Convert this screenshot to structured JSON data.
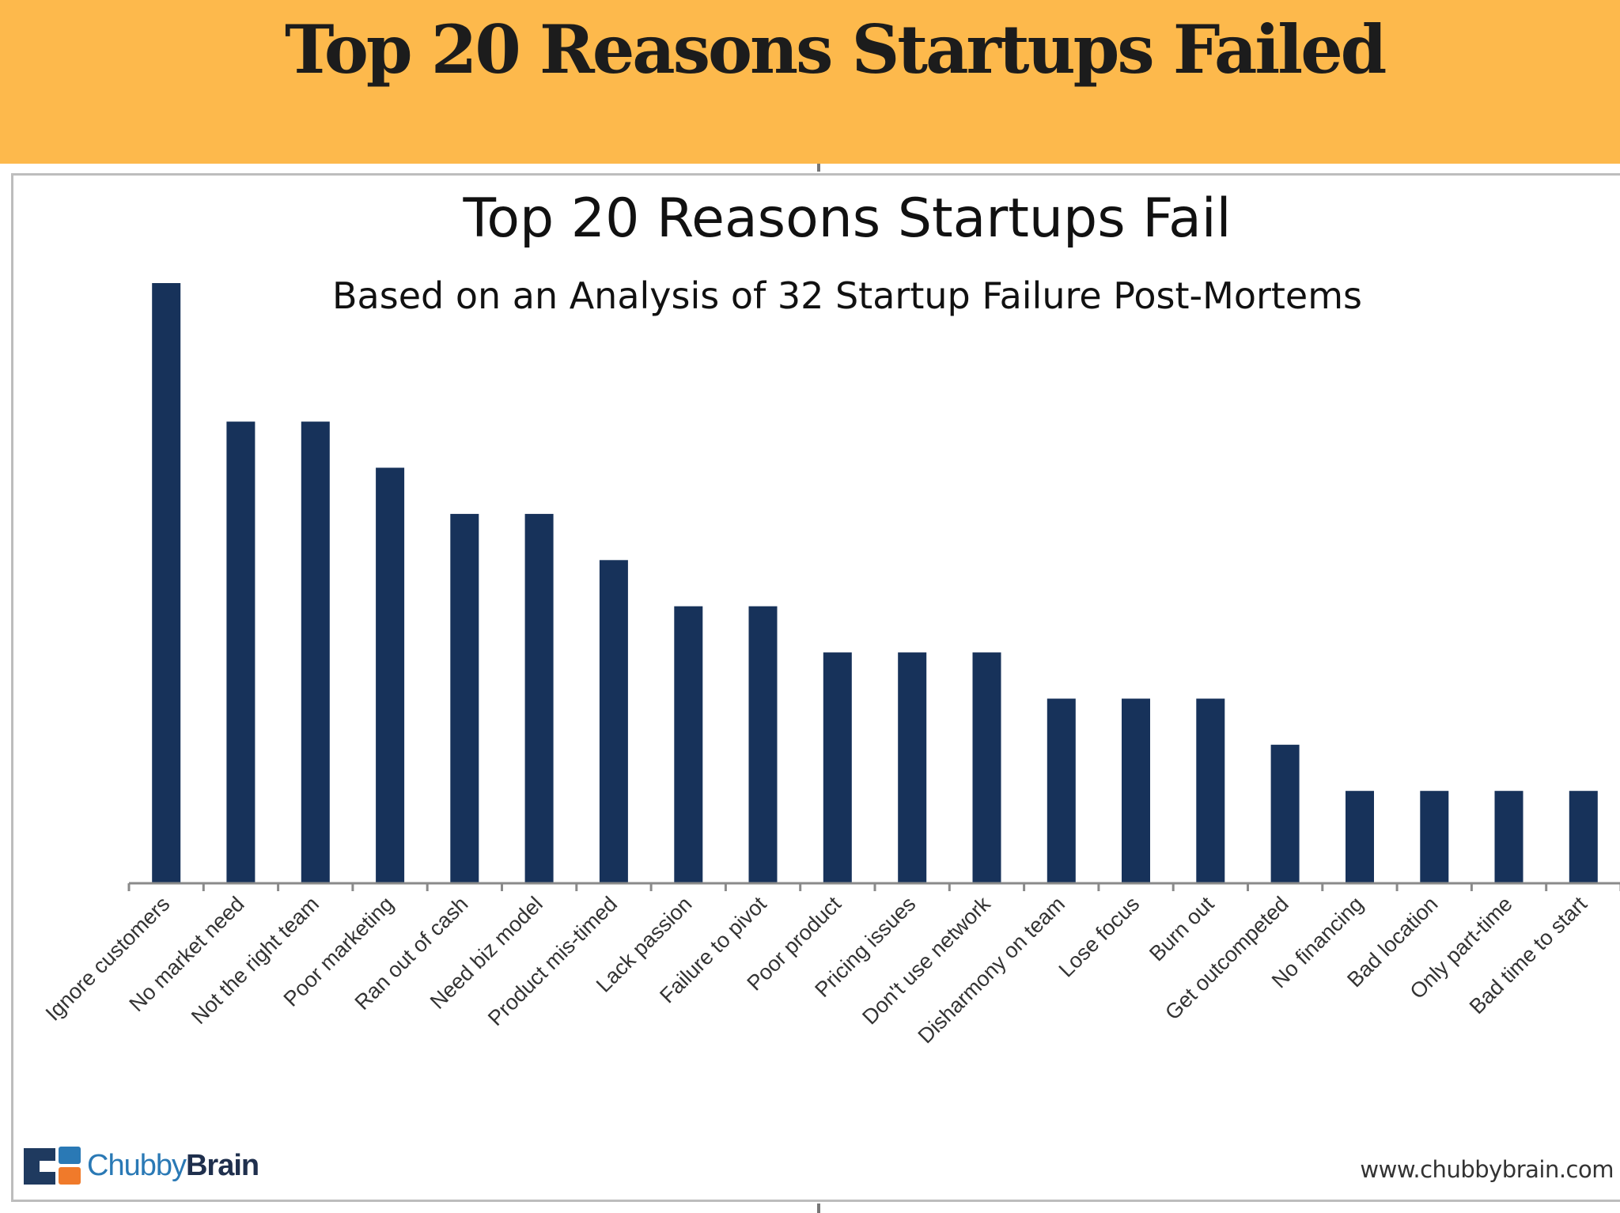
{
  "banner": {
    "title": "Top 20 Reasons Startups Failed"
  },
  "chart_data": {
    "type": "bar",
    "title": "Top 20 Reasons Startups Fail",
    "subtitle": "Based on an Analysis of 32 Startup Failure Post-Mortems",
    "xlabel": "",
    "ylabel": "",
    "categories": [
      "Ignore customers",
      "No market need",
      "Not the right team",
      "Poor marketing",
      "Ran out of cash",
      "Need biz model",
      "Product mis-timed",
      "Lack passion",
      "Failure to pivot",
      "Poor product",
      "Pricing issues",
      "Don't use network",
      "Disharmony on team",
      "Lose focus",
      "Burn out",
      "Get outcompeted",
      "No financing",
      "Bad location",
      "Only part-time",
      "Bad time to start"
    ],
    "values": [
      13,
      10,
      10,
      9,
      8,
      8,
      7,
      6,
      6,
      5,
      5,
      5,
      4,
      4,
      4,
      3,
      2,
      2,
      2,
      2
    ],
    "ylim": [
      0,
      13
    ],
    "bar_color": "#17325a",
    "grid": false,
    "legend": "none"
  },
  "branding": {
    "logo_text_light": "Chubby",
    "logo_text_bold": "Brain",
    "url": "www.chubbybrain.com",
    "logo_colors": {
      "navy": "#1f3a5f",
      "blue": "#2a79b5",
      "orange": "#f07a2a"
    }
  }
}
